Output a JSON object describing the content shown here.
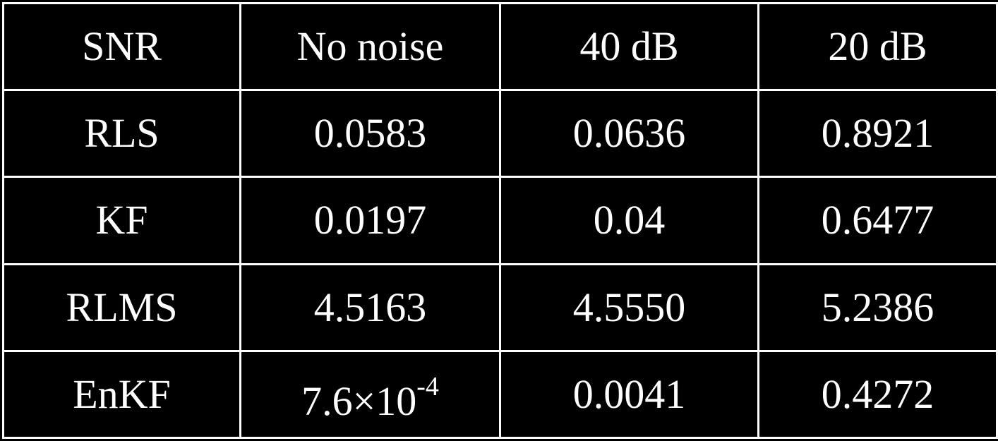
{
  "table": {
    "header": [
      "SNR",
      "No noise",
      "40 dB",
      "20 dB"
    ],
    "rows": [
      {
        "method": "RLS",
        "values": [
          "0.0583",
          "0.0636",
          "0.8921"
        ]
      },
      {
        "method": "KF",
        "values": [
          "0.0197",
          "0.04",
          "0.6477"
        ]
      },
      {
        "method": "RLMS",
        "values": [
          "4.5163",
          "4.5550",
          "5.2386"
        ]
      },
      {
        "method": "EnKF",
        "values": [
          {
            "mantissa": "7.6×10",
            "exponent": "-4"
          },
          "0.0041",
          "0.4272"
        ]
      }
    ]
  },
  "colors": {
    "background": "#000000",
    "foreground": "#ffffff"
  }
}
